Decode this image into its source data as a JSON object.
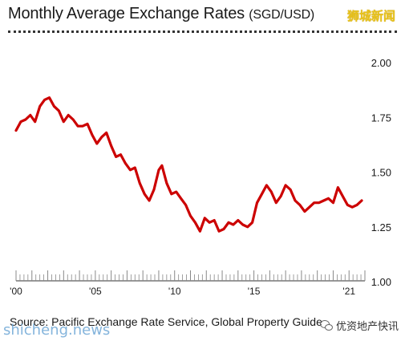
{
  "header": {
    "title": "Monthly Average Exchange Rates",
    "title_unit": "(SGD/USD)",
    "watermark_top": "狮城新闻"
  },
  "footer": {
    "source": "Source: Pacific Exchange Rate Service, Global Property Guide",
    "watermark_left": "shicheng.news",
    "watermark_right": "优资地产快讯"
  },
  "colors": {
    "line": "#cc0000",
    "axis": "#333333",
    "grid": "#e6e6e6"
  },
  "chart_data": {
    "type": "line",
    "title": "Monthly Average Exchange Rates (SGD/USD)",
    "xlabel": "",
    "ylabel": "",
    "xlim": [
      2000.0,
      2022.0
    ],
    "ylim": [
      1.0,
      2.0
    ],
    "x_ticks": [
      "'00",
      "'05",
      "'10",
      "'15",
      "'21"
    ],
    "x_tick_years": [
      2000,
      2005,
      2010,
      2015,
      2021
    ],
    "y_ticks": [
      "2.00",
      "1.75",
      "1.50",
      "1.25",
      "1.00"
    ],
    "y_tick_values": [
      2.0,
      1.75,
      1.5,
      1.25,
      1.0
    ],
    "grid": false,
    "series": [
      {
        "name": "",
        "x": [
          2000.0,
          2000.3,
          2000.6,
          2000.9,
          2001.2,
          2001.5,
          2001.8,
          2002.1,
          2002.4,
          2002.7,
          2003.0,
          2003.3,
          2003.6,
          2003.9,
          2004.2,
          2004.5,
          2004.8,
          2005.1,
          2005.4,
          2005.7,
          2006.0,
          2006.3,
          2006.6,
          2006.9,
          2007.2,
          2007.5,
          2007.8,
          2008.1,
          2008.4,
          2008.7,
          2009.0,
          2009.2,
          2009.5,
          2009.8,
          2010.1,
          2010.4,
          2010.7,
          2011.0,
          2011.3,
          2011.6,
          2011.9,
          2012.2,
          2012.5,
          2012.8,
          2013.1,
          2013.4,
          2013.7,
          2014.0,
          2014.3,
          2014.6,
          2014.9,
          2015.2,
          2015.5,
          2015.8,
          2016.1,
          2016.4,
          2016.7,
          2017.0,
          2017.3,
          2017.6,
          2017.9,
          2018.2,
          2018.5,
          2018.8,
          2019.1,
          2019.4,
          2019.7,
          2020.0,
          2020.3,
          2020.6,
          2020.9,
          2021.2,
          2021.5,
          2021.8
        ],
        "values": [
          1.69,
          1.73,
          1.74,
          1.76,
          1.73,
          1.8,
          1.83,
          1.84,
          1.8,
          1.78,
          1.73,
          1.76,
          1.74,
          1.71,
          1.71,
          1.72,
          1.67,
          1.63,
          1.66,
          1.68,
          1.62,
          1.57,
          1.58,
          1.54,
          1.51,
          1.52,
          1.45,
          1.4,
          1.37,
          1.42,
          1.51,
          1.53,
          1.45,
          1.4,
          1.41,
          1.38,
          1.35,
          1.3,
          1.27,
          1.23,
          1.29,
          1.27,
          1.28,
          1.23,
          1.24,
          1.27,
          1.26,
          1.28,
          1.26,
          1.25,
          1.27,
          1.36,
          1.4,
          1.44,
          1.41,
          1.36,
          1.39,
          1.44,
          1.42,
          1.37,
          1.35,
          1.32,
          1.34,
          1.36,
          1.36,
          1.37,
          1.38,
          1.36,
          1.43,
          1.39,
          1.35,
          1.34,
          1.35,
          1.37
        ]
      }
    ]
  }
}
